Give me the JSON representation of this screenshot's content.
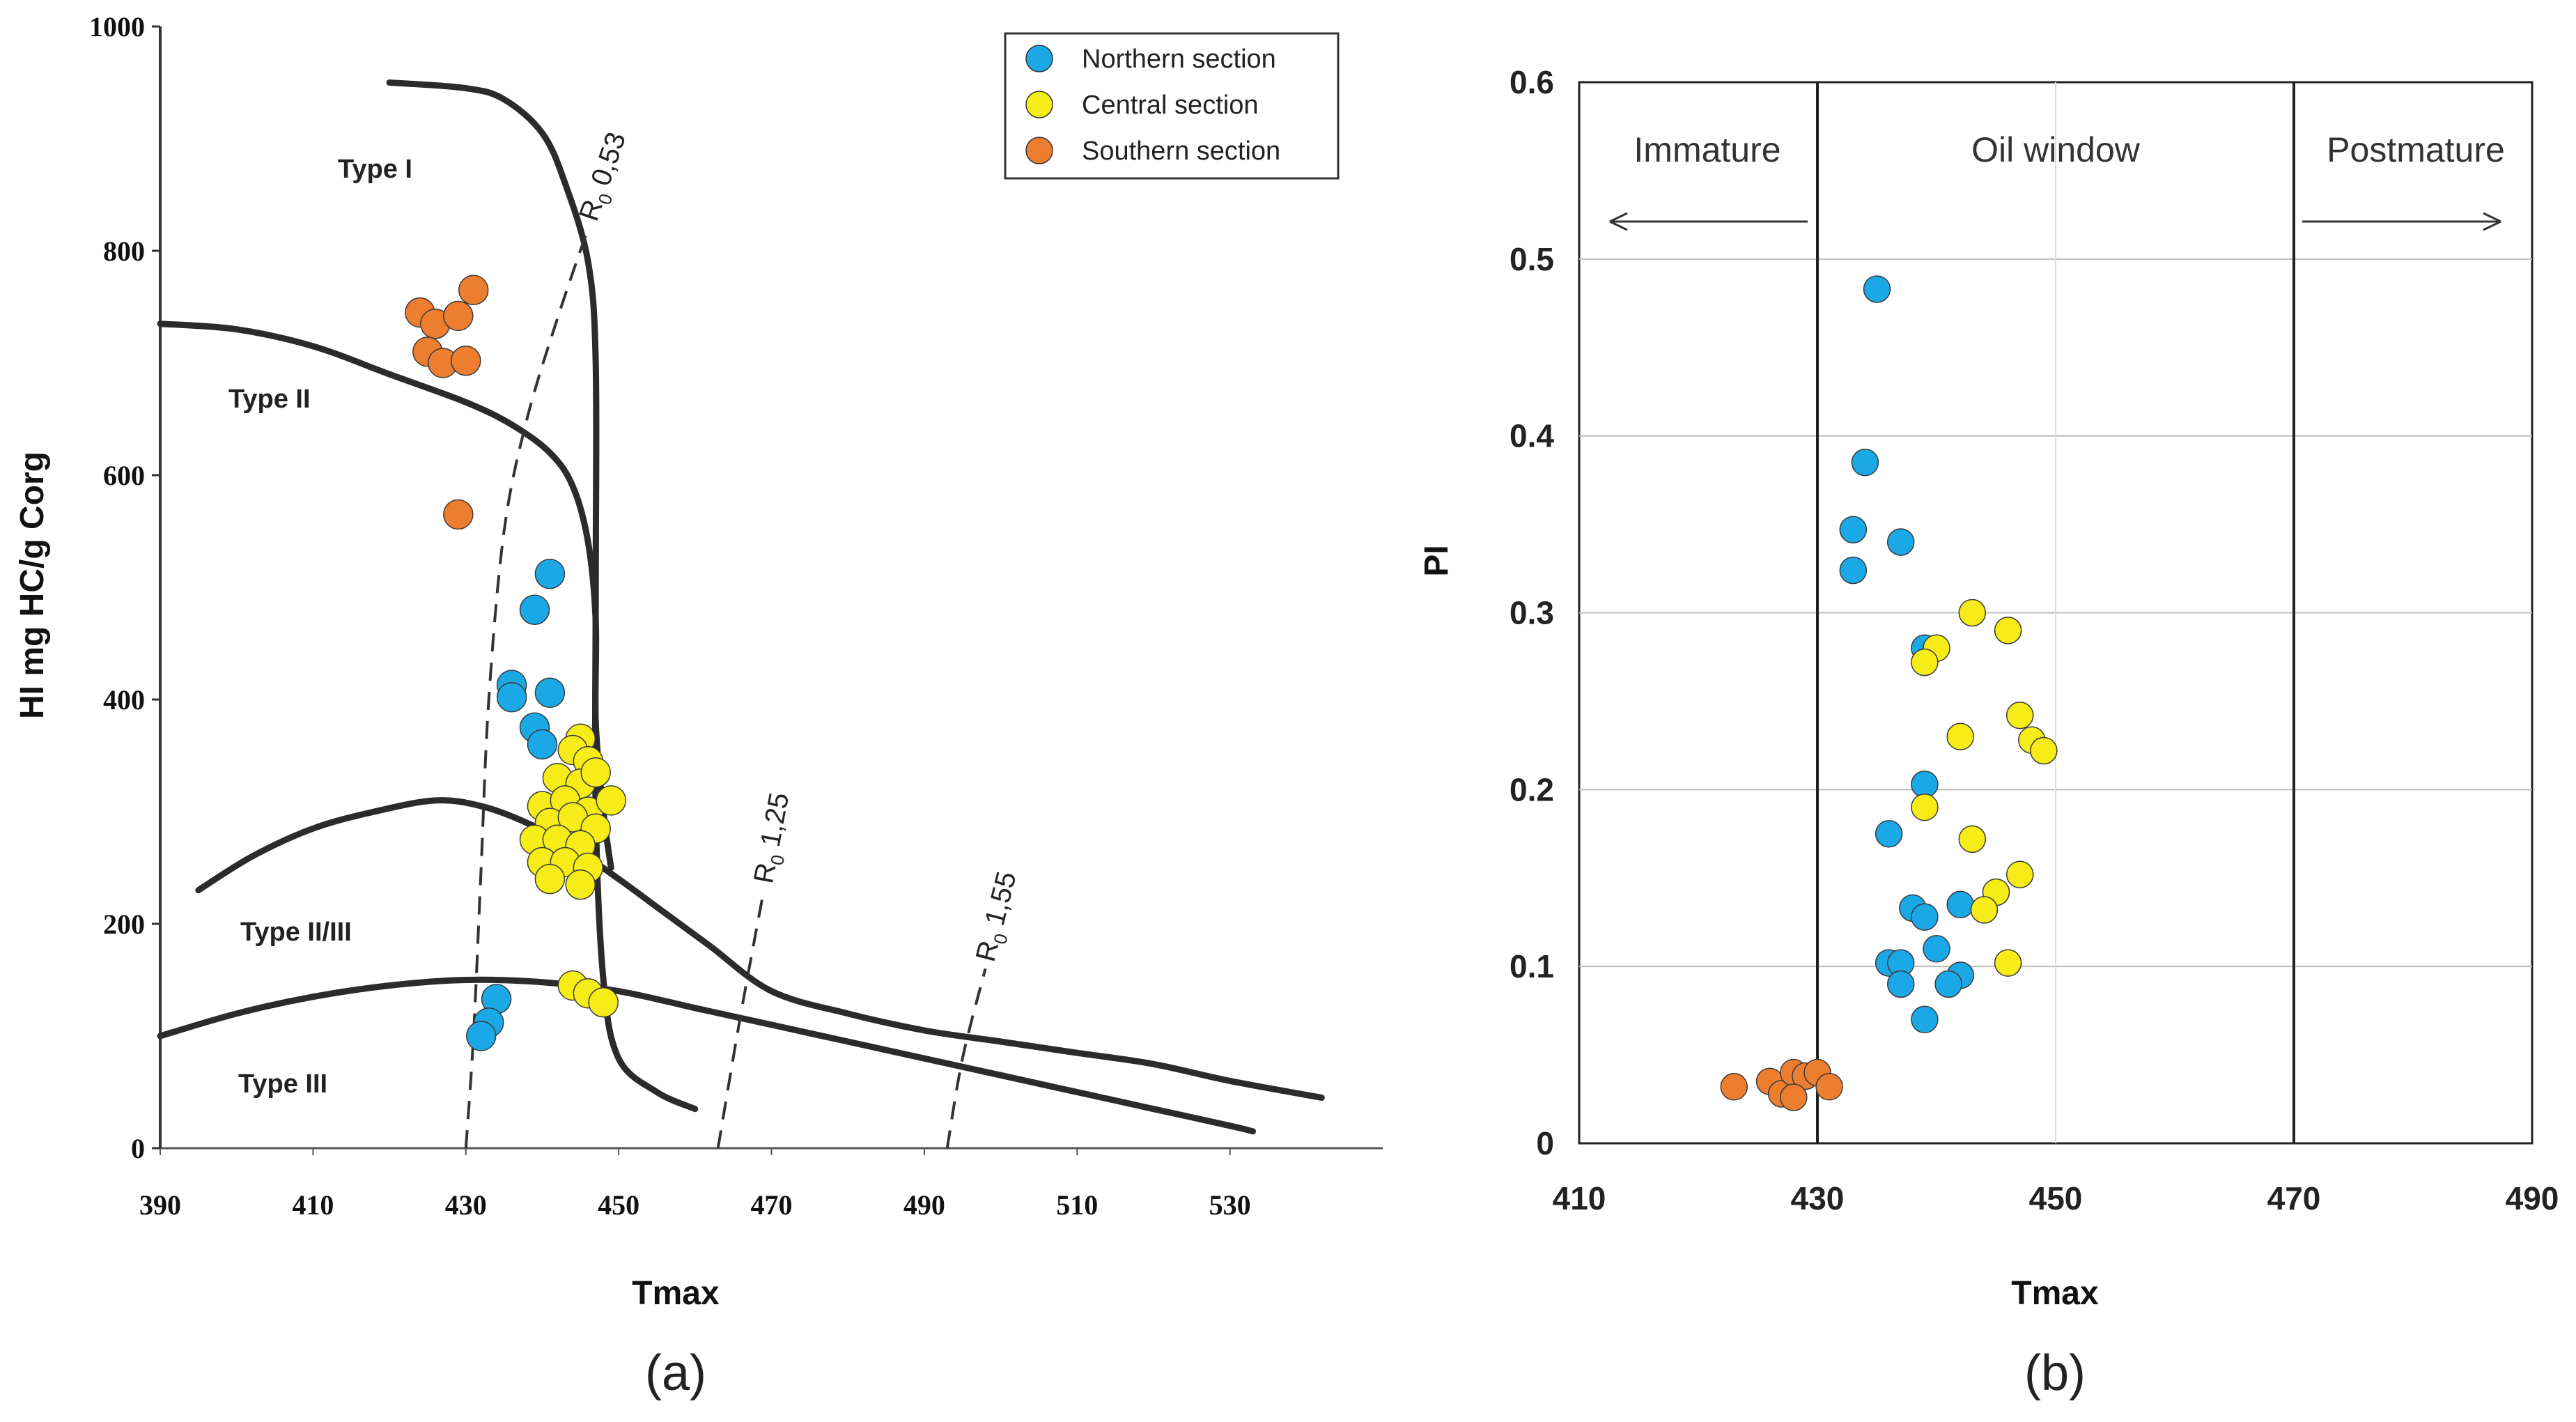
{
  "colors": {
    "northern": "#1aa8e6",
    "central": "#f5ec18",
    "southern": "#ee7e2f",
    "curve": "#2b2b2b"
  },
  "chart_data": [
    {
      "panel": "(a)",
      "type": "scatter",
      "xlabel": "Tmax",
      "ylabel": "HI mg HC/g Corg",
      "xlim": [
        390,
        550
      ],
      "ylim": [
        0,
        1000
      ],
      "xticks": [
        390,
        410,
        430,
        450,
        470,
        490,
        510,
        530
      ],
      "yticks": [
        0,
        200,
        400,
        600,
        800,
        1000
      ],
      "legend": [
        "Northern section",
        "Central section",
        "Southern section"
      ],
      "regions": [
        "Type I",
        "Type II",
        "Type II/III",
        "Type III"
      ],
      "isolines": [
        {
          "label": "0,53",
          "prefix": "R",
          "sub": "0",
          "points": [
            [
              430,
              0
            ],
            [
              431,
              100
            ],
            [
              432,
              250
            ],
            [
              433,
              400
            ],
            [
              435,
              550
            ],
            [
              438,
              650
            ],
            [
              442,
              740
            ],
            [
              446,
              820
            ]
          ]
        },
        {
          "label": "1,25",
          "prefix": "R",
          "sub": "0",
          "points": [
            [
              463,
              0
            ],
            [
              466,
              120
            ],
            [
              469,
              230
            ]
          ]
        },
        {
          "label": "1,55",
          "prefix": "R",
          "sub": "0",
          "points": [
            [
              493,
              0
            ],
            [
              495,
              80
            ],
            [
              498,
              160
            ]
          ]
        }
      ],
      "curves": [
        {
          "name": "Type I",
          "points": [
            [
              420,
              950
            ],
            [
              430,
              945
            ],
            [
              435,
              935
            ],
            [
              440,
              905
            ],
            [
              443,
              860
            ],
            [
              446,
              790
            ],
            [
              447,
              700
            ],
            [
              447,
              500
            ],
            [
              447,
              300
            ],
            [
              448,
              150
            ],
            [
              450,
              80
            ],
            [
              455,
              50
            ],
            [
              460,
              35
            ]
          ]
        },
        {
          "name": "Type II",
          "points": [
            [
              390,
              735
            ],
            [
              400,
              730
            ],
            [
              410,
              715
            ],
            [
              420,
              690
            ],
            [
              430,
              665
            ],
            [
              436,
              645
            ],
            [
              441,
              620
            ],
            [
              444,
              590
            ],
            [
              446,
              540
            ],
            [
              447,
              470
            ],
            [
              447,
              380
            ],
            [
              448,
              300
            ],
            [
              449,
              250
            ]
          ]
        },
        {
          "name": "Type II/III",
          "points": [
            [
              395,
              230
            ],
            [
              402,
              260
            ],
            [
              410,
              285
            ],
            [
              418,
              300
            ],
            [
              426,
              310
            ],
            [
              432,
              305
            ],
            [
              438,
              290
            ],
            [
              444,
              268
            ],
            [
              450,
              240
            ],
            [
              456,
              210
            ],
            [
              462,
              180
            ],
            [
              470,
              140
            ],
            [
              480,
              120
            ],
            [
              490,
              105
            ],
            [
              500,
              95
            ],
            [
              510,
              85
            ],
            [
              520,
              75
            ],
            [
              530,
              60
            ],
            [
              542,
              45
            ]
          ]
        },
        {
          "name": "Type III",
          "points": [
            [
              390,
              100
            ],
            [
              400,
              120
            ],
            [
              410,
              135
            ],
            [
              420,
              145
            ],
            [
              430,
              150
            ],
            [
              440,
              148
            ],
            [
              450,
              140
            ],
            [
              460,
              125
            ],
            [
              470,
              110
            ],
            [
              480,
              95
            ],
            [
              490,
              80
            ],
            [
              500,
              65
            ],
            [
              510,
              50
            ],
            [
              520,
              35
            ],
            [
              530,
              20
            ],
            [
              533,
              15
            ]
          ]
        }
      ],
      "series": [
        {
          "name": "Northern section",
          "x": [
            441,
            439,
            436,
            436,
            441,
            439,
            440,
            434,
            433,
            432
          ],
          "y": [
            512,
            480,
            413,
            402,
            406,
            375,
            360,
            133,
            112,
            100
          ]
        },
        {
          "name": "Central section",
          "x": [
            445,
            444,
            446,
            442,
            445,
            447,
            440,
            443,
            446,
            449,
            441,
            444,
            447,
            439,
            442,
            445,
            440,
            443,
            446,
            441,
            445,
            444,
            446,
            448
          ],
          "y": [
            365,
            355,
            345,
            330,
            325,
            335,
            305,
            310,
            300,
            310,
            290,
            295,
            285,
            275,
            275,
            270,
            255,
            255,
            250,
            240,
            235,
            145,
            138,
            130
          ]
        },
        {
          "name": "Southern section",
          "x": [
            431,
            424,
            426,
            429,
            425,
            427,
            430,
            429
          ],
          "y": [
            765,
            745,
            735,
            742,
            710,
            700,
            702,
            565
          ]
        }
      ]
    },
    {
      "panel": "(b)",
      "type": "scatter",
      "xlabel": "Tmax",
      "ylabel": "PI",
      "xlim": [
        410,
        490
      ],
      "ylim": [
        0,
        0.6
      ],
      "xticks": [
        410,
        430,
        450,
        470,
        490
      ],
      "yticks": [
        0,
        0.1,
        0.2,
        0.3,
        0.4,
        0.5,
        0.6
      ],
      "zones": [
        "Immature",
        "Oil window",
        "Postmature"
      ],
      "zone_boundaries": [
        430,
        470
      ],
      "series": [
        {
          "name": "Northern section",
          "x": [
            435,
            434,
            433,
            437,
            433,
            439,
            439,
            436,
            442,
            438,
            439,
            436,
            437,
            440,
            437,
            442,
            441,
            439
          ],
          "y": [
            0.483,
            0.385,
            0.347,
            0.34,
            0.324,
            0.28,
            0.203,
            0.175,
            0.135,
            0.133,
            0.128,
            0.102,
            0.102,
            0.11,
            0.09,
            0.095,
            0.09,
            0.07
          ]
        },
        {
          "name": "Central section",
          "x": [
            443,
            446,
            440,
            439,
            447,
            442,
            448,
            449,
            439,
            443,
            447,
            445,
            444,
            446
          ],
          "y": [
            0.3,
            0.29,
            0.28,
            0.272,
            0.242,
            0.23,
            0.228,
            0.222,
            0.19,
            0.172,
            0.152,
            0.142,
            0.132,
            0.102
          ]
        },
        {
          "name": "Southern section",
          "x": [
            423,
            426,
            427,
            428,
            429,
            430,
            431,
            428
          ],
          "y": [
            0.032,
            0.035,
            0.028,
            0.04,
            0.038,
            0.04,
            0.032,
            0.026
          ]
        }
      ]
    }
  ],
  "text": {
    "panel_a_label": "(a)",
    "panel_b_label": "(b)",
    "xlabel_a": "Tmax",
    "xlabel_b": "Tmax",
    "ylabel_a": "HI mg HC/g Corg",
    "ylabel_b": "PI",
    "legend_1": "Northern section",
    "legend_2": "Central section",
    "legend_3": "Southern section",
    "type_1": "Type I",
    "type_2": "Type II",
    "type_23": "Type II/III",
    "type_3": "Type III",
    "zone_1": "Immature",
    "zone_2": "Oil window",
    "zone_3": "Postmature"
  }
}
